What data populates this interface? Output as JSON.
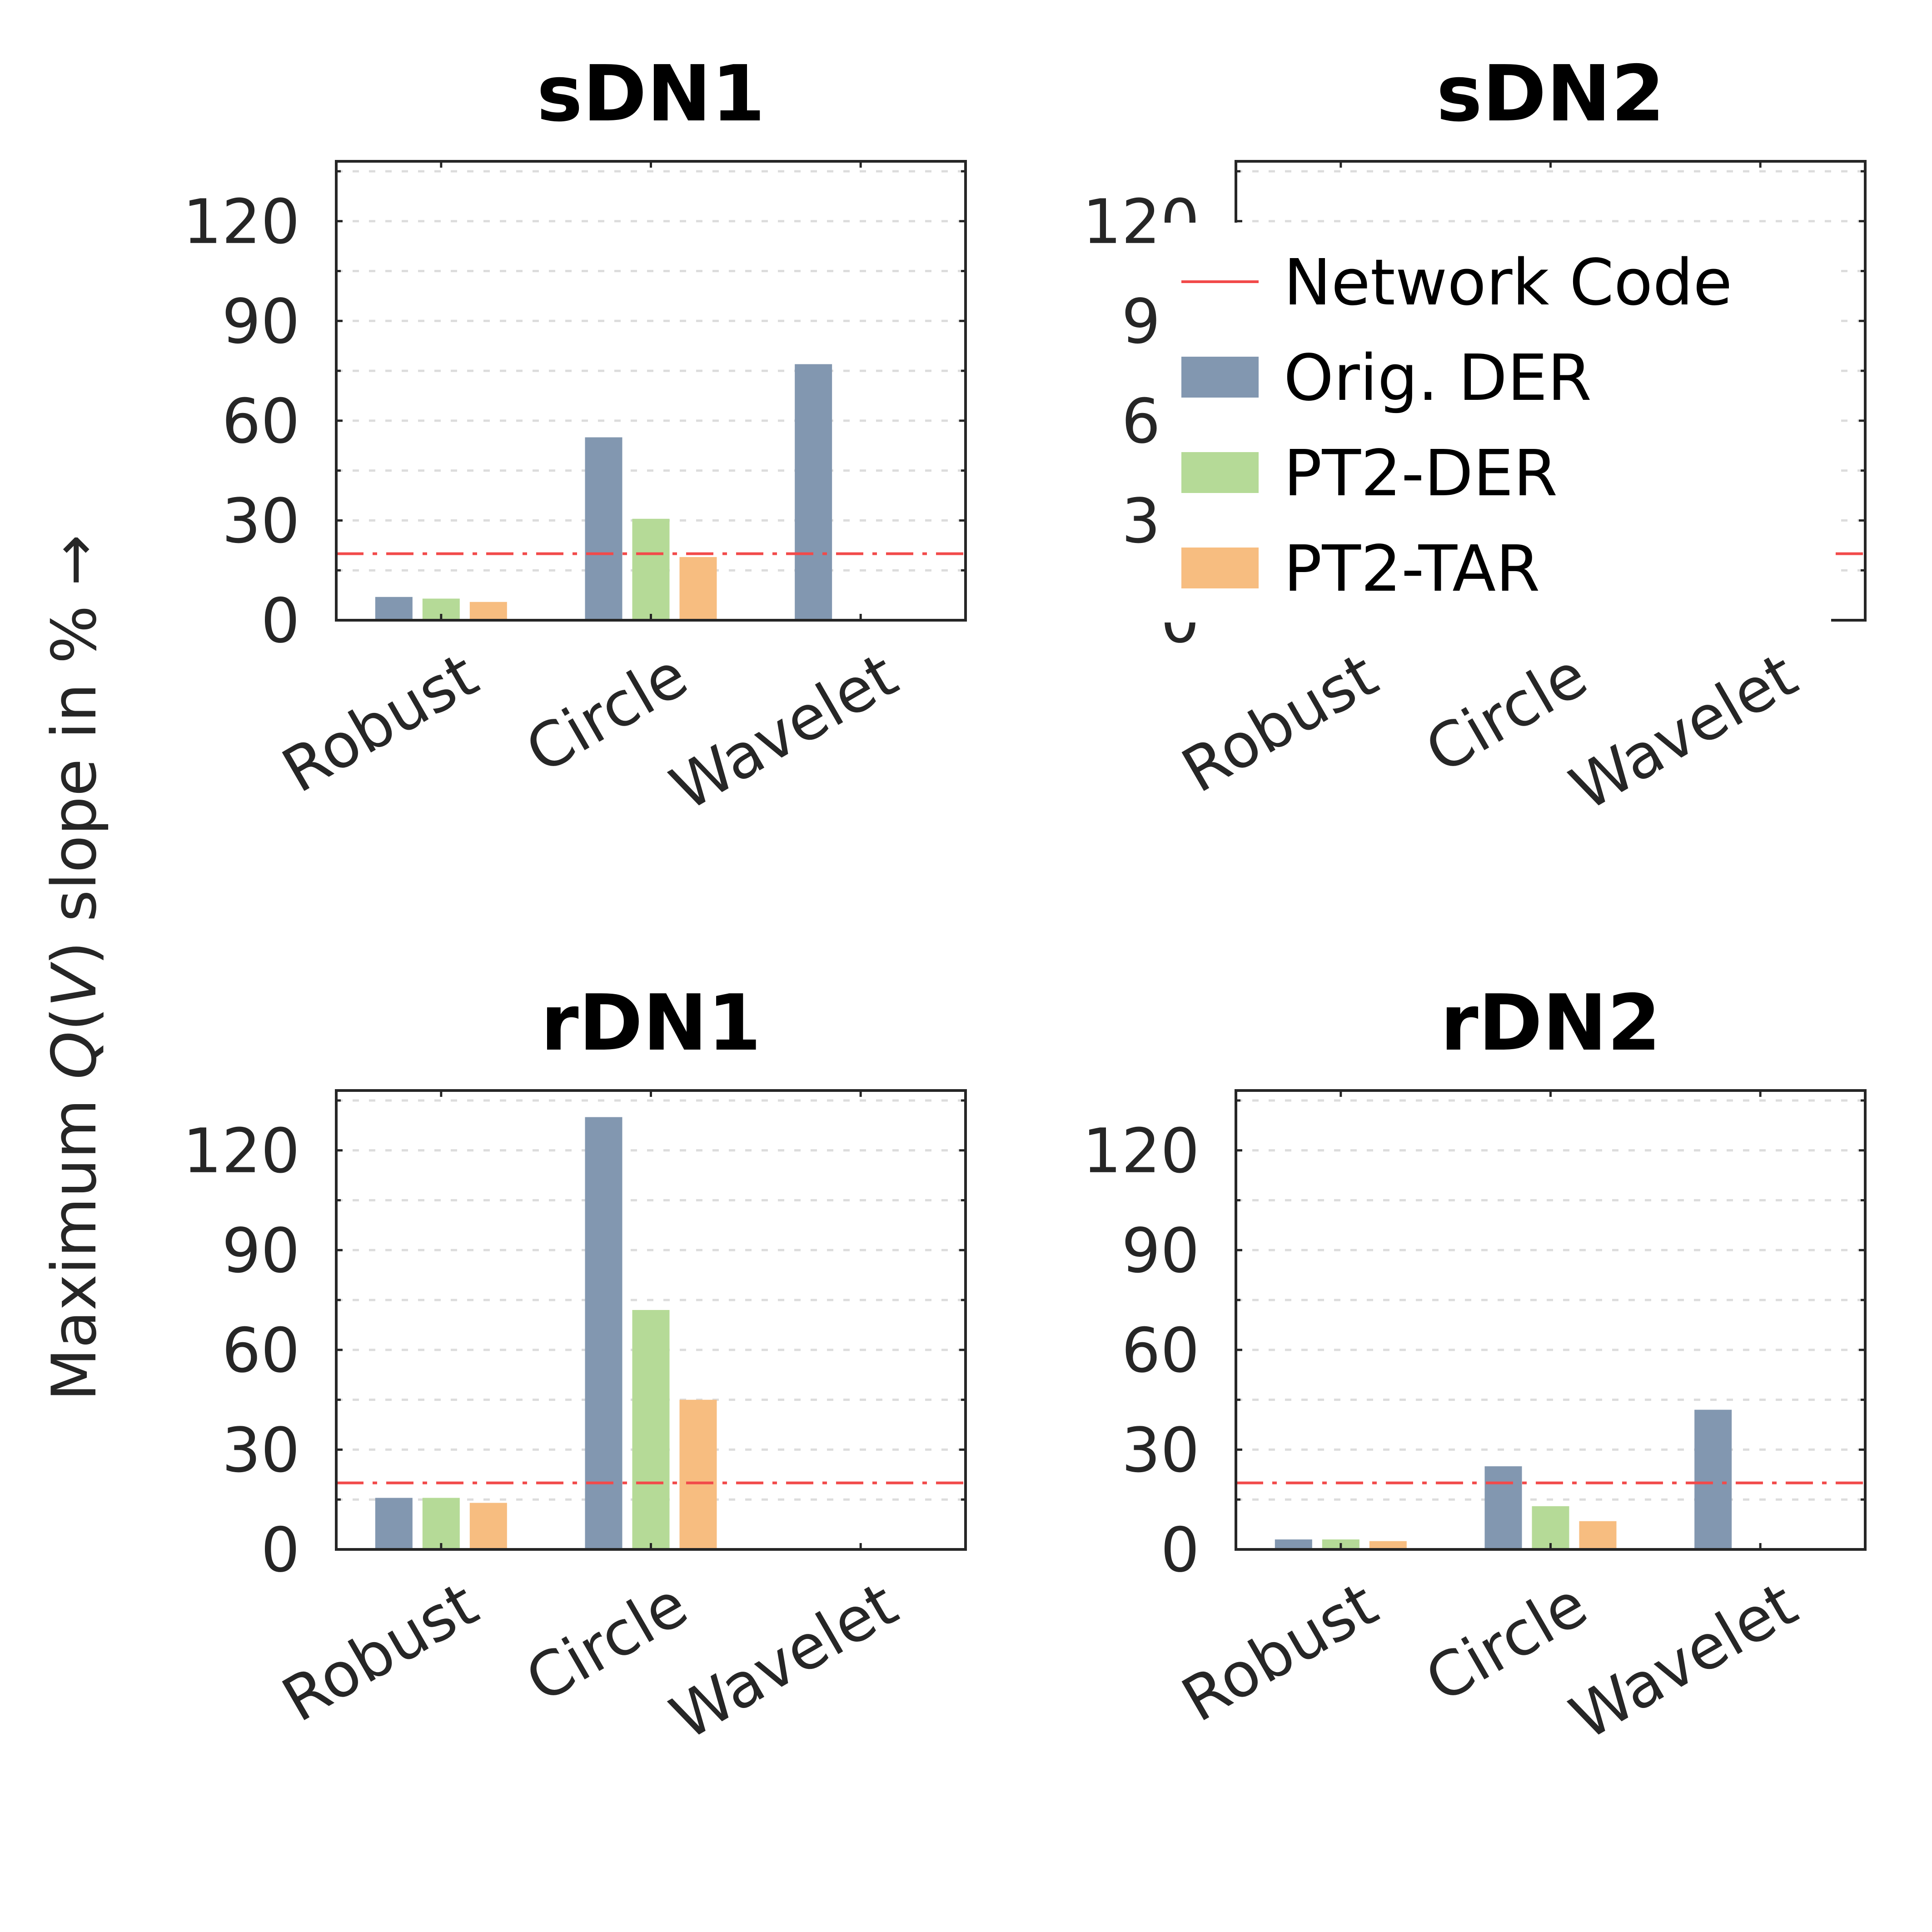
{
  "chart_data": {
    "type": "bar",
    "ylabel": "Maximum Q(V) slope in % →",
    "ylabel_parts": {
      "before": "Maximum ",
      "italic": "Q",
      "paren_open": "(",
      "italic2": "V",
      "after": ") slope in % →"
    },
    "categories": [
      "Robust",
      "Circle",
      "Wavelet"
    ],
    "yticks": [
      0,
      30,
      60,
      90,
      120
    ],
    "ylim": [
      0,
      138
    ],
    "network_code": 20,
    "legend": {
      "position": "top-right of sDN2 panel",
      "entries": [
        {
          "label": "Network Code",
          "kind": "line",
          "color": "#f24a4a"
        },
        {
          "label": "Orig. DER",
          "kind": "bar",
          "color": "#8297b0"
        },
        {
          "label": "PT2-DER",
          "kind": "bar",
          "color": "#b5da97"
        },
        {
          "label": "PT2-TAR",
          "kind": "bar",
          "color": "#f7bd80"
        }
      ]
    },
    "panels": [
      {
        "title": "sDN1",
        "series": [
          {
            "name": "Orig. DER",
            "values": [
              7,
              55,
              77
            ]
          },
          {
            "name": "PT2-DER",
            "values": [
              6.5,
              30.5,
              null
            ]
          },
          {
            "name": "PT2-TAR",
            "values": [
              5.5,
              19,
              null
            ]
          }
        ]
      },
      {
        "title": "sDN2",
        "series": [
          {
            "name": "Orig. DER",
            "values": [
              null,
              null,
              null
            ]
          },
          {
            "name": "PT2-DER",
            "values": [
              null,
              null,
              null
            ]
          },
          {
            "name": "PT2-TAR",
            "values": [
              null,
              null,
              null
            ]
          }
        ]
      },
      {
        "title": "rDN1",
        "series": [
          {
            "name": "Orig. DER",
            "values": [
              15.5,
              130,
              null
            ]
          },
          {
            "name": "PT2-DER",
            "values": [
              15.5,
              72,
              null
            ]
          },
          {
            "name": "PT2-TAR",
            "values": [
              14,
              45,
              null
            ]
          }
        ]
      },
      {
        "title": "rDN2",
        "series": [
          {
            "name": "Orig. DER",
            "values": [
              3,
              25,
              42
            ]
          },
          {
            "name": "PT2-DER",
            "values": [
              3,
              13,
              null
            ]
          },
          {
            "name": "PT2-TAR",
            "values": [
              2.5,
              8.5,
              null
            ]
          }
        ]
      }
    ]
  }
}
